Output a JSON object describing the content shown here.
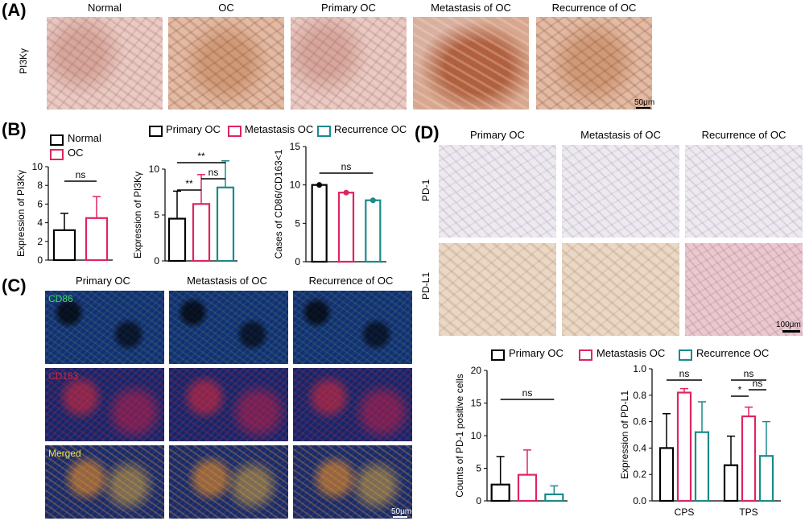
{
  "panels": {
    "A": {
      "letter": "(A)",
      "row_label": "PI3Kγ",
      "columns": [
        "Normal",
        "OC",
        "Primary OC",
        "Metastasis of OC",
        "Recurrence of OC"
      ],
      "scale": "50μm"
    },
    "B": {
      "letter": "(B)",
      "legend1": [
        {
          "label": "Normal",
          "color": "#000000"
        },
        {
          "label": "OC",
          "color": "#e0245e"
        }
      ],
      "legend2": [
        {
          "label": "Primary OC",
          "color": "#000000"
        },
        {
          "label": "Metastasis OC",
          "color": "#e0245e"
        },
        {
          "label": "Recurrence OC",
          "color": "#1a8a8a"
        }
      ]
    },
    "C": {
      "letter": "(C)",
      "columns": [
        "Primary OC",
        "Metastasis of OC",
        "Recurrence of OC"
      ],
      "rows": [
        {
          "label": "CD86",
          "color": "#3ddc6a"
        },
        {
          "label": "CD163",
          "color": "#e0243a"
        },
        {
          "label": "Merged",
          "color": "#f2e03a"
        }
      ],
      "scale": "50μm"
    },
    "D": {
      "letter": "(D)",
      "columns": [
        "Primary OC",
        "Metastasis of OC",
        "Recurrence of OC"
      ],
      "rows": [
        "PD-1",
        "PD-L1"
      ],
      "scale": "100μm",
      "legend": [
        {
          "label": "Primary OC",
          "color": "#000000"
        },
        {
          "label": "Metastasis OC",
          "color": "#e0245e"
        },
        {
          "label": "Recurrence OC",
          "color": "#1a8a8a"
        }
      ]
    }
  },
  "colors": {
    "primary": "#000000",
    "metastasis": "#e0245e",
    "recurrence": "#1a8a8a"
  },
  "chart_data": [
    {
      "id": "b1",
      "type": "bar",
      "categories": [
        "Normal",
        "OC"
      ],
      "values": [
        3.2,
        4.5
      ],
      "errors": [
        1.8,
        2.3
      ],
      "ylabel": "Expression of PI3Kγ",
      "ylim": [
        0,
        10
      ],
      "yticks": [
        "0",
        "2",
        "4",
        "6",
        "8",
        "10"
      ],
      "significance": [
        {
          "label": "ns"
        }
      ]
    },
    {
      "id": "b2",
      "type": "bar",
      "categories": [
        "Primary OC",
        "Metastasis OC",
        "Recurrence OC"
      ],
      "values": [
        4.6,
        6.2,
        8.0
      ],
      "errors": [
        3.0,
        3.2,
        2.9
      ],
      "ylabel": "Expression of PI3Kγ",
      "ylim": [
        0,
        10
      ],
      "yticks": [
        "0",
        "5",
        "10"
      ],
      "significance": [
        {
          "label": "**"
        },
        {
          "label": "**"
        },
        {
          "label": "ns"
        }
      ]
    },
    {
      "id": "b3",
      "type": "bar",
      "categories": [
        "Primary OC",
        "Metastasis OC",
        "Recurrence OC"
      ],
      "values": [
        10,
        9,
        8
      ],
      "ylabel": "Cases of CD86/CD163<1",
      "ylim": [
        0,
        15
      ],
      "yticks": [
        "0",
        "5",
        "10",
        "15"
      ],
      "significance": [
        {
          "label": "ns"
        }
      ]
    },
    {
      "id": "d1",
      "type": "bar",
      "categories": [
        "Primary OC",
        "Metastasis OC",
        "Recurrence OC"
      ],
      "values": [
        2.5,
        4.0,
        1.0
      ],
      "errors": [
        4.3,
        3.8,
        1.3
      ],
      "ylabel": "Counts of PD-1 positive cells",
      "ylim": [
        0,
        20
      ],
      "yticks": [
        "0",
        "5",
        "10",
        "15",
        "20"
      ],
      "significance": [
        {
          "label": "ns"
        }
      ]
    },
    {
      "id": "d2",
      "type": "bar",
      "categories": [
        "CPS",
        "TPS"
      ],
      "series": [
        {
          "name": "Primary OC",
          "values": [
            0.4,
            0.27
          ],
          "errors": [
            0.26,
            0.22
          ]
        },
        {
          "name": "Metastasis OC",
          "values": [
            0.82,
            0.64
          ],
          "errors": [
            0.03,
            0.07
          ]
        },
        {
          "name": "Recurrence OC",
          "values": [
            0.52,
            0.34
          ],
          "errors": [
            0.23,
            0.26
          ]
        }
      ],
      "ylabel": "Expression of PD-L1",
      "ylim": [
        0,
        1.0
      ],
      "yticks": [
        "0.0",
        "0.2",
        "0.4",
        "0.6",
        "0.8",
        "1.0"
      ],
      "significance": [
        {
          "label": "ns"
        },
        {
          "label": "ns"
        },
        {
          "label": "*"
        },
        {
          "label": "ns"
        }
      ]
    }
  ]
}
